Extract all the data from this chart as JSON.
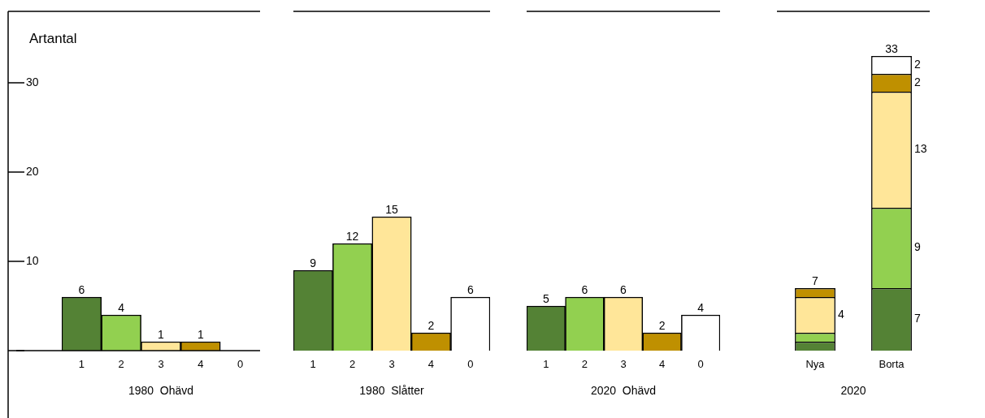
{
  "chart_data": [
    {
      "type": "bar",
      "ylabel": "Artantal",
      "xlabel": "1980  Ohävd",
      "categories": [
        "1",
        "2",
        "3",
        "4",
        "0"
      ],
      "values": [
        6,
        4,
        1,
        1,
        0
      ],
      "colors": [
        "#548235",
        "#92d050",
        "#ffe699",
        "#bf9000",
        "#ffffff"
      ],
      "value_labels": [
        "6",
        "4",
        "1",
        "1",
        null
      ],
      "ylim": [
        0,
        38
      ],
      "yticks": [
        {
          "value": 0,
          "label": null
        },
        10,
        20,
        30
      ],
      "grid": false,
      "legend": false
    },
    {
      "type": "bar",
      "xlabel": "1980  Slåtter",
      "categories": [
        "1",
        "2",
        "3",
        "4",
        "0"
      ],
      "values": [
        9,
        12,
        15,
        2,
        6
      ],
      "colors": [
        "#548235",
        "#92d050",
        "#ffe699",
        "#bf9000",
        "#ffffff"
      ],
      "data_labels": true,
      "ylim": [
        0,
        38
      ],
      "tick_labels": "x",
      "grid": false,
      "legend": false
    },
    {
      "type": "bar",
      "xlabel": "2020  Ohävd",
      "categories": [
        "1",
        "2",
        "3",
        "4",
        "0"
      ],
      "values": [
        5,
        6,
        6,
        2,
        4
      ],
      "colors": [
        "#548235",
        "#92d050",
        "#ffe699",
        "#bf9000",
        "#ffffff"
      ],
      "data_labels": true,
      "ylim": [
        0,
        38
      ],
      "tick_labels": "x",
      "grid": false,
      "legend": false
    },
    {
      "type": "bar",
      "xlabel": "2020",
      "categories": [
        "Nya",
        "Borta"
      ],
      "stacked": true,
      "ylim": [
        0,
        38
      ],
      "tick_labels": "x",
      "grid": false,
      "legend": false,
      "totals": [
        "7",
        "33"
      ],
      "series": [
        {
          "color": "#548235",
          "values": [
            1,
            7
          ],
          "value_labels": [
            null,
            "7"
          ]
        },
        {
          "color": "#92d050",
          "values": [
            1,
            9
          ],
          "value_labels": [
            null,
            "9"
          ]
        },
        {
          "color": "#ffe699",
          "values": [
            4,
            13
          ],
          "value_labels": [
            "4",
            "13"
          ]
        },
        {
          "color": "#bf9000",
          "values": [
            1,
            2
          ],
          "value_labels": [
            null,
            "2"
          ]
        },
        {
          "color": "#ffffff",
          "values": [
            null,
            2
          ],
          "value_labels": [
            null,
            "2"
          ]
        }
      ]
    }
  ]
}
